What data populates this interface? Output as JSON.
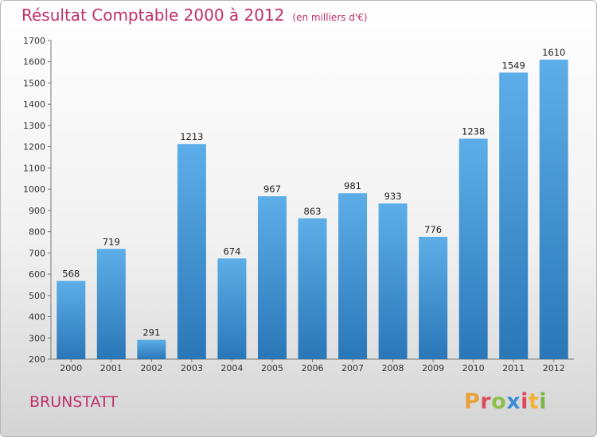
{
  "header": {
    "title": "Résultat Comptable 2000 à 2012",
    "subtitle": "(en milliers d'€)"
  },
  "footer": {
    "city": "BRUNSTATT",
    "logo_text": "Proxiti",
    "logo_colors": [
      "#e8a13a",
      "#d94f5c",
      "#8cc04b",
      "#3a8fd6",
      "#e0455a",
      "#f2b233",
      "#7bb548"
    ]
  },
  "chart_data": {
    "type": "bar",
    "title": "Résultat Comptable 2000 à 2012",
    "subtitle": "(en milliers d'€)",
    "xlabel": "",
    "ylabel": "",
    "categories": [
      "2000",
      "2001",
      "2002",
      "2003",
      "2004",
      "2005",
      "2006",
      "2007",
      "2008",
      "2009",
      "2010",
      "2011",
      "2012"
    ],
    "values": [
      568,
      719,
      291,
      1213,
      674,
      967,
      863,
      981,
      933,
      776,
      1238,
      1549,
      1610
    ],
    "ylim": [
      200,
      1700
    ],
    "yticks": [
      200,
      300,
      400,
      500,
      600,
      700,
      800,
      900,
      1000,
      1100,
      1200,
      1300,
      1400,
      1500,
      1600,
      1700
    ],
    "grid": false,
    "legend": "none",
    "bar_color": "#4aa0dd"
  }
}
